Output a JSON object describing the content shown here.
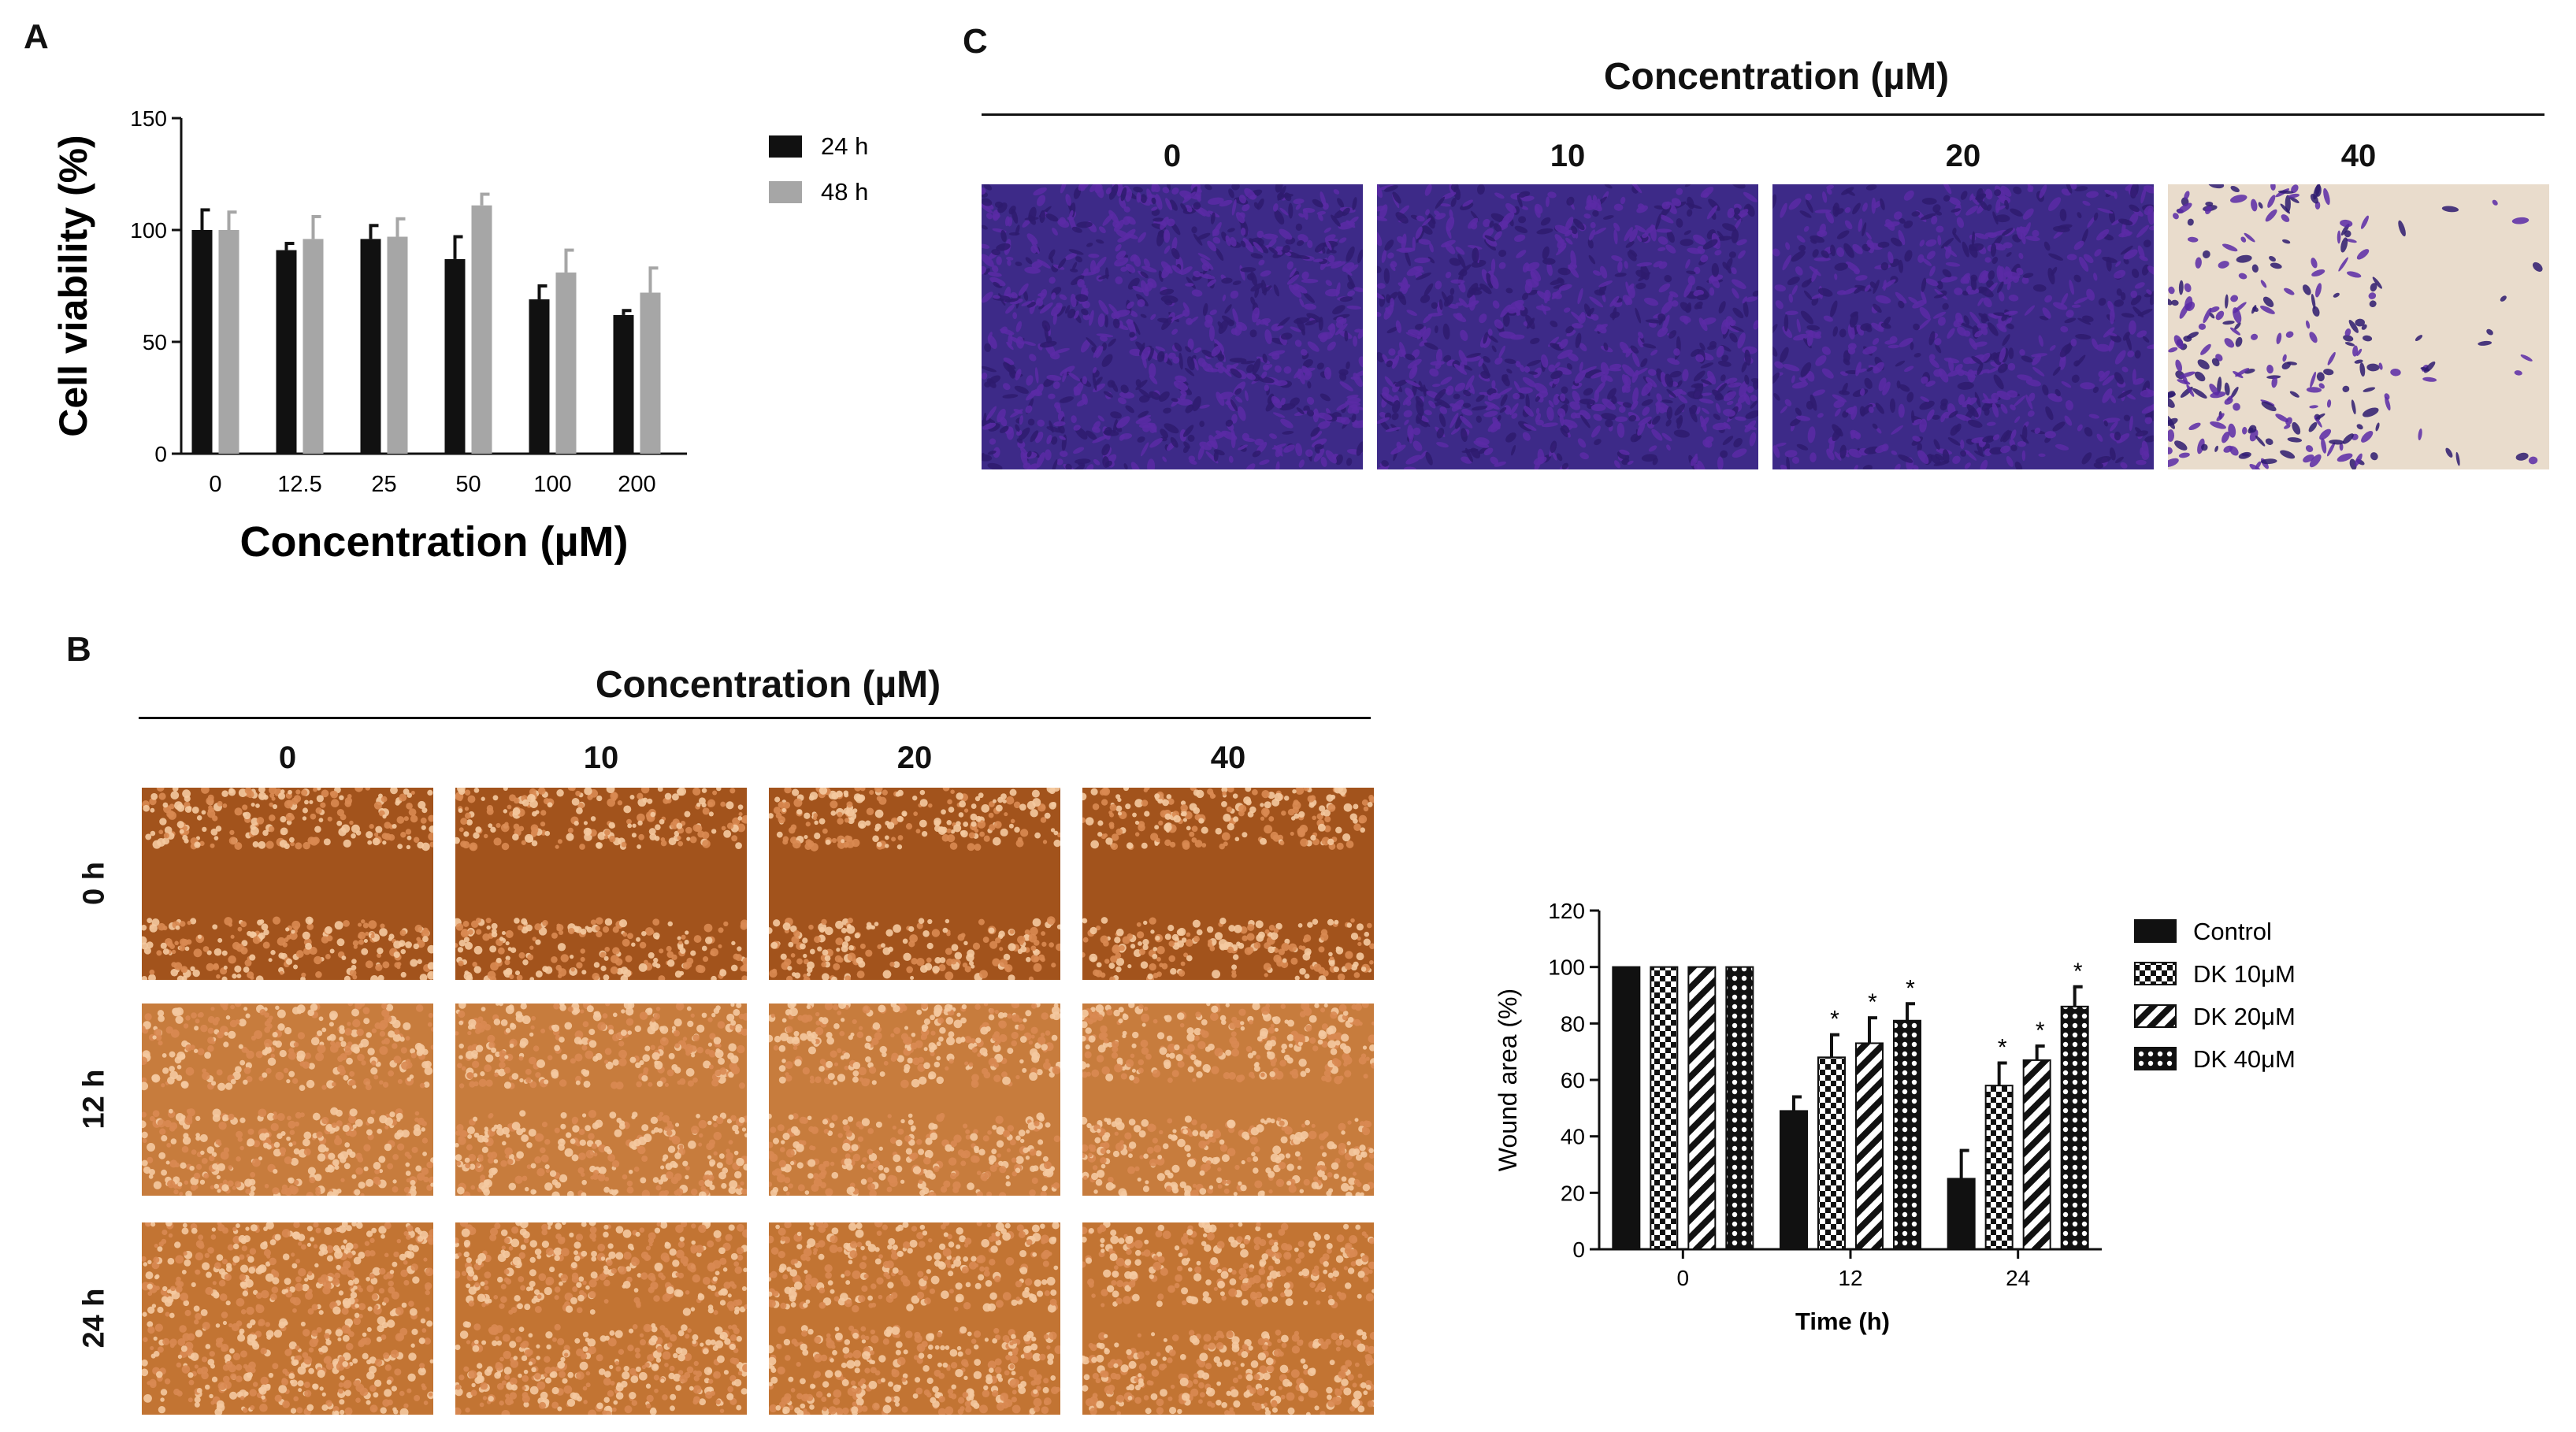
{
  "panels": {
    "a_label": "A",
    "b_label": "B",
    "c_label": "C"
  },
  "panel_b": {
    "title": "Concentration (µM)",
    "columns": [
      "0",
      "10",
      "20",
      "40"
    ],
    "rows": [
      "0 h",
      "12 h",
      "24 h"
    ]
  },
  "panel_c": {
    "title": "Concentration (µM)",
    "columns": [
      "0",
      "10",
      "20",
      "40"
    ]
  },
  "colors": {
    "bar_24h": "#111111",
    "bar_48h": "#a6a6a6",
    "stain": "#5a2a9a",
    "wound_bg": "#b35a1f"
  },
  "chart_data": [
    {
      "id": "A",
      "type": "bar",
      "title": "",
      "xlabel": "Concentration (µM)",
      "ylabel": "Cell viability (%)",
      "categories": [
        "0",
        "12.5",
        "25",
        "50",
        "100",
        "200"
      ],
      "ylim": [
        0,
        150
      ],
      "yticks": [
        "0",
        "50",
        "100",
        "150"
      ],
      "legend_position": "top-right",
      "series": [
        {
          "name": "24 h",
          "values": [
            100,
            91,
            96,
            87,
            69,
            62
          ],
          "errors": [
            9,
            3,
            6,
            10,
            6,
            2
          ]
        },
        {
          "name": "48 h",
          "values": [
            100,
            96,
            97,
            111,
            81,
            72
          ],
          "errors": [
            8,
            10,
            8,
            5,
            10,
            11
          ]
        }
      ]
    },
    {
      "id": "B",
      "type": "bar",
      "title": "",
      "xlabel": "Time (h)",
      "ylabel": "Wound area (%)",
      "categories": [
        "0",
        "12",
        "24"
      ],
      "ylim": [
        0,
        120
      ],
      "yticks": [
        "0",
        "20",
        "40",
        "60",
        "80",
        "100",
        "120"
      ],
      "legend_position": "top-right",
      "series": [
        {
          "name": "Control",
          "values": [
            100,
            49,
            25
          ],
          "errors": [
            0,
            5,
            10
          ],
          "sig": [
            "",
            "",
            ""
          ]
        },
        {
          "name": "DK 10μM",
          "values": [
            100,
            68,
            58
          ],
          "errors": [
            0,
            8,
            8
          ],
          "sig": [
            "",
            "*",
            "*"
          ]
        },
        {
          "name": "DK 20μM",
          "values": [
            100,
            73,
            67
          ],
          "errors": [
            0,
            9,
            5
          ],
          "sig": [
            "",
            "*",
            "*"
          ]
        },
        {
          "name": "DK 40μM",
          "values": [
            100,
            81,
            86
          ],
          "errors": [
            0,
            6,
            7
          ],
          "sig": [
            "",
            "*",
            "*"
          ]
        }
      ]
    }
  ]
}
